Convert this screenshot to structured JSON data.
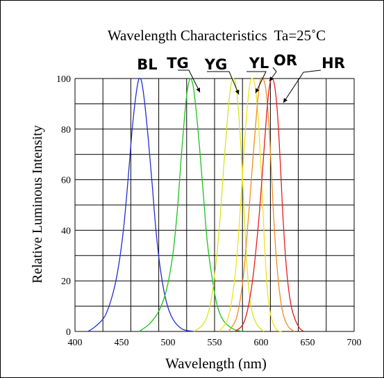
{
  "chart_data": {
    "type": "line",
    "title": "Wavelength Characteristics",
    "title_condition": "Ta=25˚C",
    "xlabel": "Wavelength (nm)",
    "ylabel": "Relative Luminous Intensity",
    "xlim": [
      400,
      700
    ],
    "ylim": [
      0,
      100
    ],
    "x_ticks": [
      "400",
      "450",
      "500",
      "550",
      "600",
      "650",
      "700"
    ],
    "y_ticks": [
      "0",
      "20",
      "40",
      "60",
      "80",
      "100"
    ],
    "grid": true,
    "series": [
      {
        "name": "BL",
        "color": "#1f2bd6",
        "points": [
          [
            414,
            0
          ],
          [
            422,
            2
          ],
          [
            432,
            6
          ],
          [
            440,
            14
          ],
          [
            446,
            24
          ],
          [
            452,
            40
          ],
          [
            457,
            60
          ],
          [
            461,
            78
          ],
          [
            465,
            92
          ],
          [
            468,
            99
          ],
          [
            470,
            100
          ],
          [
            472,
            98
          ],
          [
            475,
            90
          ],
          [
            479,
            75
          ],
          [
            483,
            58
          ],
          [
            487,
            40
          ],
          [
            492,
            24
          ],
          [
            498,
            12
          ],
          [
            505,
            5
          ],
          [
            515,
            1
          ],
          [
            528,
            0
          ]
        ]
      },
      {
        "name": "TG",
        "color": "#19c419",
        "points": [
          [
            469,
            0
          ],
          [
            480,
            3
          ],
          [
            490,
            8
          ],
          [
            498,
            16
          ],
          [
            505,
            30
          ],
          [
            510,
            48
          ],
          [
            514,
            68
          ],
          [
            518,
            86
          ],
          [
            521,
            96
          ],
          [
            524,
            100
          ],
          [
            527,
            97
          ],
          [
            530,
            88
          ],
          [
            534,
            72
          ],
          [
            538,
            54
          ],
          [
            542,
            36
          ],
          [
            547,
            22
          ],
          [
            553,
            10
          ],
          [
            560,
            4
          ],
          [
            570,
            1
          ],
          [
            580,
            0
          ]
        ]
      },
      {
        "name": "YG",
        "color": "#d7e61c",
        "points": [
          [
            528,
            0
          ],
          [
            538,
            3
          ],
          [
            545,
            10
          ],
          [
            551,
            25
          ],
          [
            556,
            45
          ],
          [
            560,
            66
          ],
          [
            564,
            85
          ],
          [
            567,
            96
          ],
          [
            570,
            100
          ],
          [
            573,
            97
          ],
          [
            576,
            86
          ],
          [
            579,
            68
          ],
          [
            582,
            46
          ],
          [
            585,
            25
          ],
          [
            589,
            10
          ],
          [
            595,
            3
          ],
          [
            603,
            0
          ]
        ]
      },
      {
        "name": "YL",
        "color": "#f0e416",
        "points": [
          [
            555,
            0
          ],
          [
            565,
            6
          ],
          [
            572,
            22
          ],
          [
            577,
            45
          ],
          [
            581,
            68
          ],
          [
            585,
            88
          ],
          [
            588,
            98
          ],
          [
            591,
            100
          ],
          [
            594,
            96
          ],
          [
            597,
            84
          ],
          [
            600,
            64
          ],
          [
            603,
            40
          ],
          [
            606,
            20
          ],
          [
            610,
            7
          ],
          [
            616,
            1
          ],
          [
            622,
            0
          ]
        ]
      },
      {
        "name": "OR",
        "color": "#f28b1e",
        "points": [
          [
            565,
            0
          ],
          [
            574,
            6
          ],
          [
            581,
            22
          ],
          [
            587,
            48
          ],
          [
            592,
            72
          ],
          [
            596,
            90
          ],
          [
            599,
            99
          ],
          [
            602,
            100
          ],
          [
            605,
            96
          ],
          [
            608,
            84
          ],
          [
            611,
            64
          ],
          [
            614,
            42
          ],
          [
            618,
            22
          ],
          [
            623,
            8
          ],
          [
            629,
            2
          ],
          [
            636,
            0
          ]
        ]
      },
      {
        "name": "HR",
        "color": "#e81a1a",
        "points": [
          [
            572,
            0
          ],
          [
            582,
            4
          ],
          [
            590,
            18
          ],
          [
            597,
            42
          ],
          [
            602,
            66
          ],
          [
            606,
            86
          ],
          [
            609,
            97
          ],
          [
            612,
            100
          ],
          [
            615,
            96
          ],
          [
            618,
            84
          ],
          [
            621,
            64
          ],
          [
            624,
            42
          ],
          [
            628,
            22
          ],
          [
            633,
            9
          ],
          [
            640,
            2
          ],
          [
            646,
            0
          ]
        ]
      }
    ]
  }
}
